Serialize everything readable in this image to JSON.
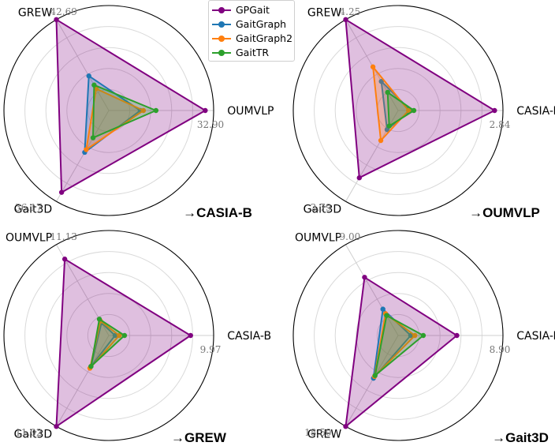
{
  "legend": [
    {
      "name": "GPGait",
      "color": "#800080"
    },
    {
      "name": "GaitGraph",
      "color": "#1f77b4"
    },
    {
      "name": "GaitGraph2",
      "color": "#ff7f0e"
    },
    {
      "name": "GaitTR",
      "color": "#2ca02c"
    }
  ],
  "chart_data": [
    {
      "type": "radar",
      "title": "→CASIA-B",
      "axes": [
        "OUMVLP",
        "GREW",
        "Gait3D"
      ],
      "axis_max_labels": [
        "32.90",
        "42.69",
        "36.17"
      ],
      "ylim": [
        0,
        1
      ],
      "series": [
        {
          "name": "GPGait",
          "values": [
            0.92,
            1.0,
            0.9
          ]
        },
        {
          "name": "GaitGraph",
          "values": [
            0.3,
            0.38,
            0.46
          ]
        },
        {
          "name": "GaitGraph2",
          "values": [
            0.33,
            0.24,
            0.43
          ]
        },
        {
          "name": "GaitTR",
          "values": [
            0.45,
            0.28,
            0.3
          ]
        }
      ]
    },
    {
      "type": "radar",
      "title": "→OUMVLP",
      "axes": [
        "CASIA-B",
        "GREW",
        "Gait3D"
      ],
      "axis_max_labels": [
        "2.84",
        "4.25",
        "2.79"
      ],
      "ylim": [
        0,
        1
      ],
      "series": [
        {
          "name": "GPGait",
          "values": [
            0.92,
            1.0,
            0.74
          ]
        },
        {
          "name": "GaitGraph",
          "values": [
            0.12,
            0.32,
            0.21
          ]
        },
        {
          "name": "GaitGraph2",
          "values": [
            0.1,
            0.48,
            0.33
          ]
        },
        {
          "name": "GaitTR",
          "values": [
            0.15,
            0.2,
            0.17
          ]
        }
      ]
    },
    {
      "type": "radar",
      "title": "→GREW",
      "axes": [
        "CASIA-B",
        "OUMVLP",
        "Gait3D"
      ],
      "axis_max_labels": [
        "9.97",
        "11.13",
        "11.02"
      ],
      "ylim": [
        0,
        1
      ],
      "series": [
        {
          "name": "GPGait",
          "values": [
            0.78,
            0.84,
            1.0
          ]
        },
        {
          "name": "GaitGraph",
          "values": [
            0.06,
            0.14,
            0.34
          ]
        },
        {
          "name": "GaitGraph2",
          "values": [
            0.1,
            0.16,
            0.36
          ]
        },
        {
          "name": "GaitTR",
          "values": [
            0.15,
            0.18,
            0.34
          ]
        }
      ]
    },
    {
      "type": "radar",
      "title": "→Gait3D",
      "axes": [
        "CASIA-B",
        "OUMVLP",
        "GREW"
      ],
      "axis_max_labels": [
        "8.90",
        "9.00",
        "18.50"
      ],
      "ylim": [
        0,
        1
      ],
      "series": [
        {
          "name": "GPGait",
          "values": [
            0.56,
            0.64,
            1.0
          ]
        },
        {
          "name": "GaitGraph",
          "values": [
            0.12,
            0.29,
            0.47
          ]
        },
        {
          "name": "GaitGraph2",
          "values": [
            0.16,
            0.24,
            0.45
          ]
        },
        {
          "name": "GaitTR",
          "values": [
            0.24,
            0.22,
            0.44
          ]
        }
      ]
    }
  ]
}
